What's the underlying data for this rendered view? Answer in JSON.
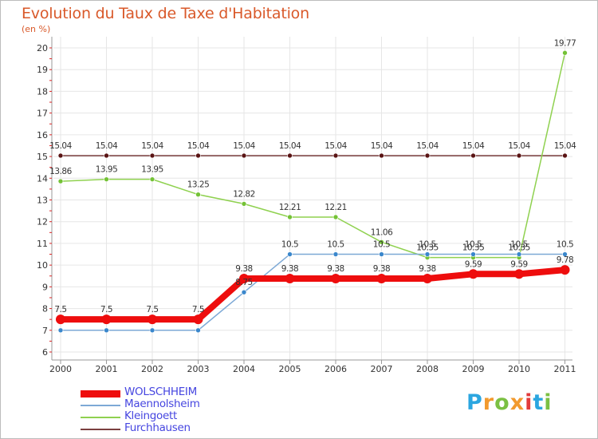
{
  "title": "Evolution du Taux de Taxe d'Habitation",
  "unit_label": "(en %)",
  "logo": {
    "text": "Proxiti",
    "letters": [
      "P",
      "r",
      "o",
      "x",
      "i",
      "t",
      "i"
    ],
    "letter_colors": [
      "#2ba6e0",
      "#f29a2e",
      "#7bc043",
      "#f29a2e",
      "#e23b3b",
      "#2ba6e0",
      "#7bc043"
    ]
  },
  "chart_data": {
    "type": "line",
    "title": "Evolution du Taux de Taxe d'Habitation",
    "ylabel": "(en %)",
    "xlabel": "",
    "x": [
      "2000",
      "2001",
      "2002",
      "2003",
      "2004",
      "2005",
      "2006",
      "2007",
      "2008",
      "2009",
      "2010",
      "2011"
    ],
    "ylim": [
      6,
      20
    ],
    "yticks": [
      6,
      7,
      8,
      9,
      10,
      11,
      12,
      13,
      14,
      15,
      16,
      17,
      18,
      19,
      20
    ],
    "grid": true,
    "legend_position": "bottom-left",
    "series": [
      {
        "name": "Furchhausen",
        "color": "#7b3f3f",
        "marker_color": "#5a1414",
        "values": [
          15.04,
          15.04,
          15.04,
          15.04,
          15.04,
          15.04,
          15.04,
          15.04,
          15.04,
          15.04,
          15.04,
          15.04
        ],
        "labels": [
          "15.04",
          "15.04",
          "15.04",
          "15.04",
          "15.04",
          "15.04",
          "15.04",
          "15.04",
          "15.04",
          "15.04",
          "15.04",
          "15.04"
        ]
      },
      {
        "name": "Kleingoett",
        "color": "#8fd14f",
        "marker_color": "#74c236",
        "values": [
          13.86,
          13.95,
          13.95,
          13.25,
          12.82,
          12.21,
          12.21,
          11.06,
          10.35,
          10.35,
          10.35,
          19.77
        ],
        "labels": [
          "13.86",
          "13.95",
          "13.95",
          "13.25",
          "12.82",
          "12.21",
          "12.21",
          "11.06",
          "10.35",
          "10.35",
          "10.35",
          "19.77"
        ]
      },
      {
        "name": "Maennolsheim",
        "color": "#7da9d6",
        "marker_color": "#3a87cc",
        "values": [
          7.0,
          7.0,
          7.0,
          7.0,
          8.75,
          10.5,
          10.5,
          10.5,
          10.5,
          10.5,
          10.5,
          10.5
        ],
        "labels": [
          "",
          "",
          "",
          "",
          "8.75",
          "10.5",
          "10.5",
          "10.5",
          "10.5",
          "10.5",
          "10.5",
          "10.5"
        ]
      },
      {
        "name": "WOLSCHHEIM",
        "color": "#ee0d0d",
        "marker_color": "#ee0d0d",
        "values": [
          7.5,
          7.5,
          7.5,
          7.5,
          9.38,
          9.38,
          9.38,
          9.38,
          9.38,
          9.59,
          9.59,
          9.78
        ],
        "labels": [
          "7.5",
          "7.5",
          "7.5",
          "7.5",
          "9.38",
          "9.38",
          "9.38",
          "9.38",
          "9.38",
          "9.59",
          "9.59",
          "9.78"
        ]
      }
    ]
  },
  "legend": [
    {
      "label": "WOLSCHHEIM",
      "color": "#ee0d0d"
    },
    {
      "label": "Maennolsheim",
      "color": "#7da9d6"
    },
    {
      "label": "Kleingoett",
      "color": "#8fd14f"
    },
    {
      "label": "Furchhausen",
      "color": "#7b3f3f"
    }
  ]
}
